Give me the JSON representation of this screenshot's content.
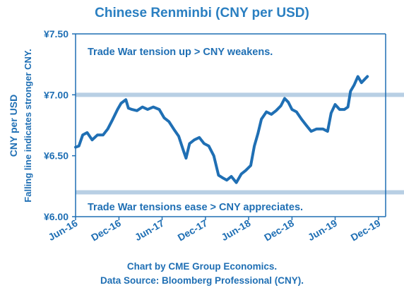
{
  "chart_data": {
    "type": "line",
    "title": "Chinese Renminbi (CNY per USD)",
    "ylabel": "CNY per USD",
    "ylabel2": "Falling line indicates stronger CNY.",
    "ylim": [
      6.0,
      7.5
    ],
    "yticks": [
      6.0,
      6.5,
      7.0,
      7.5
    ],
    "ytick_labels": [
      "¥6.00",
      "¥6.50",
      "¥7.00",
      "¥7.50"
    ],
    "xticks": [
      "2016-06-01",
      "2016-12-01",
      "2017-06-01",
      "2017-12-01",
      "2018-06-01",
      "2018-12-01",
      "2019-06-01",
      "2019-12-01"
    ],
    "xtick_labels": [
      "Jun-16",
      "Dec-16",
      "Jun-17",
      "Dec-17",
      "Jun-18",
      "Dec-18",
      "Jun-19",
      "Dec-19"
    ],
    "xlim": [
      "2016-06-01",
      "2019-12-31"
    ],
    "grid": false,
    "line_color": "#1f6fb4",
    "reference_lines": [
      {
        "value": 7.0,
        "color": "#b8cfe4"
      },
      {
        "value": 6.2,
        "color": "#b8cfe4"
      }
    ],
    "annotations": [
      {
        "text": "Trade War tension up > CNY weakens.",
        "anchor": "top-left"
      },
      {
        "text": "Trade War tensions ease > CNY appreciates.",
        "anchor": "bottom-left"
      }
    ],
    "series": [
      {
        "x": [
          "2016-06-01",
          "2016-06-15",
          "2016-07-01",
          "2016-07-20",
          "2016-08-10",
          "2016-09-01",
          "2016-09-25",
          "2016-10-15",
          "2016-11-05",
          "2016-11-25",
          "2016-12-10",
          "2016-12-30",
          "2017-01-10",
          "2017-01-25",
          "2017-02-15",
          "2017-03-10",
          "2017-04-01",
          "2017-04-25",
          "2017-05-20",
          "2017-06-10",
          "2017-06-30",
          "2017-07-20",
          "2017-08-10",
          "2017-09-01",
          "2017-09-10",
          "2017-09-25",
          "2017-10-15",
          "2017-11-05",
          "2017-11-25",
          "2017-12-15",
          "2018-01-05",
          "2018-01-25",
          "2018-02-10",
          "2018-03-01",
          "2018-03-20",
          "2018-04-10",
          "2018-05-01",
          "2018-05-20",
          "2018-06-10",
          "2018-06-25",
          "2018-07-10",
          "2018-07-25",
          "2018-08-15",
          "2018-09-05",
          "2018-09-25",
          "2018-10-15",
          "2018-10-31",
          "2018-11-15",
          "2018-12-01",
          "2018-12-20",
          "2019-01-10",
          "2019-01-30",
          "2019-02-20",
          "2019-03-15",
          "2019-04-10",
          "2019-04-30",
          "2019-05-15",
          "2019-06-01",
          "2019-06-20",
          "2019-07-10",
          "2019-07-25",
          "2019-08-05",
          "2019-08-20",
          "2019-09-05",
          "2019-09-20",
          "2019-10-05",
          "2019-10-15"
        ],
        "values": [
          6.57,
          6.58,
          6.67,
          6.69,
          6.63,
          6.67,
          6.67,
          6.72,
          6.8,
          6.88,
          6.93,
          6.96,
          6.89,
          6.88,
          6.87,
          6.9,
          6.88,
          6.9,
          6.88,
          6.81,
          6.78,
          6.72,
          6.66,
          6.53,
          6.48,
          6.6,
          6.63,
          6.65,
          6.6,
          6.58,
          6.5,
          6.34,
          6.32,
          6.3,
          6.33,
          6.28,
          6.35,
          6.38,
          6.42,
          6.58,
          6.68,
          6.8,
          6.86,
          6.84,
          6.87,
          6.91,
          6.97,
          6.94,
          6.88,
          6.86,
          6.8,
          6.75,
          6.7,
          6.72,
          6.72,
          6.7,
          6.85,
          6.92,
          6.88,
          6.88,
          6.9,
          7.03,
          7.08,
          7.15,
          7.1,
          7.13,
          7.15
        ]
      }
    ]
  },
  "credits": {
    "line1": "Chart by CME Group Economics.",
    "line2": "Data Source:  Bloomberg Professional (CNY)."
  }
}
